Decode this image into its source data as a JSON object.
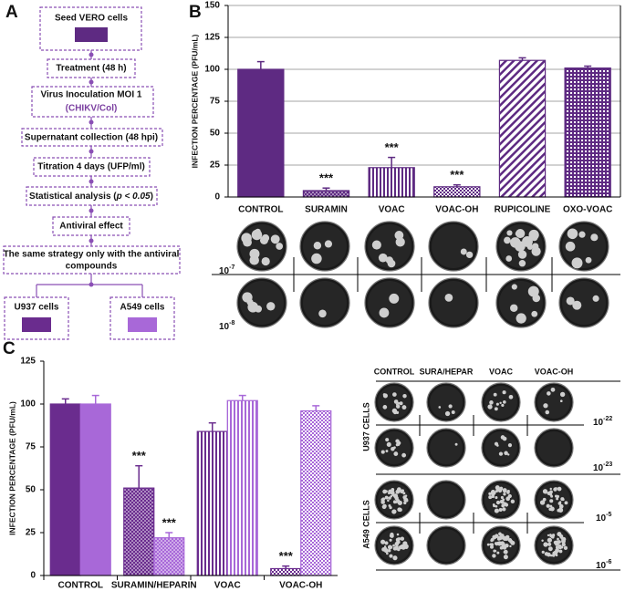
{
  "panels": {
    "a": "A",
    "b": "B",
    "c": "C"
  },
  "flowchart": {
    "seed": "Seed VERO cells",
    "treatment": "Treatment (48 h)",
    "inoculation": "Virus Inoculation MOI 1",
    "virus": "(CHIKV/Col)",
    "supernatant": "Supernatant collection (48 hpi)",
    "titration": "Titration 4 days (UFP/ml)",
    "stats": {
      "before": "Statistical analysis (",
      "italic": "p < 0.05",
      "after": ")"
    },
    "effect": "Antiviral effect",
    "strategy": [
      "The same strategy only with the antiviral",
      "compounds"
    ],
    "u937": "U937 cells",
    "a549": "A549 cells"
  },
  "chart_data": [
    {
      "type": "bar",
      "ylabel": "INFECTION PERCENTAGE (PFU/mL)",
      "categories": [
        "CONTROL",
        "SURAMIN",
        "VOAC",
        "VOAC-OH",
        "RUPICOLINE",
        "OXO-VOAC"
      ],
      "values": [
        100,
        5,
        23,
        8,
        107,
        101
      ],
      "errors": [
        6,
        2,
        8,
        1.5,
        2,
        1.5
      ],
      "value_annotations": [
        null,
        "***",
        "***",
        "***",
        null,
        null
      ],
      "color": "#5e2a82",
      "patterns": [
        "solid",
        "dots",
        "vstripes",
        "checker",
        "diagonal",
        "crosshatch"
      ],
      "ylim": [
        0,
        150
      ],
      "yticks": [
        0,
        25,
        50,
        75,
        100,
        125,
        150
      ],
      "grid": true
    },
    {
      "type": "bar",
      "ylabel": "INFECTION PERCENTAGE (PFU/mL)",
      "categories": [
        "CONTROL",
        "SURAMIN/HEPARIN",
        "VOAC",
        "VOAC-OH"
      ],
      "series": [
        {
          "color": "#6a2c8e",
          "values": [
            100,
            51,
            84,
            4
          ],
          "errors": [
            3,
            13,
            5,
            1.5
          ],
          "value_annotations": [
            null,
            "***",
            null,
            "***"
          ]
        },
        {
          "color": "#a868d8",
          "values": [
            100,
            22,
            102,
            96
          ],
          "errors": [
            5,
            3,
            3,
            3
          ],
          "value_annotations": [
            null,
            "***",
            null,
            null
          ]
        }
      ],
      "patterns": [
        "solid",
        "dots",
        "vstripes",
        "checker"
      ],
      "ylim": [
        0,
        125
      ],
      "yticks": [
        0,
        25,
        50,
        75,
        100,
        125
      ],
      "grid": false
    }
  ],
  "plates_b": {
    "dilutions": [
      {
        "base": "10",
        "exp": "-7"
      },
      {
        "base": "10",
        "exp": "-8"
      }
    ]
  },
  "plates_c": {
    "columns": [
      "CONTROL",
      "SURA/HEPAR",
      "VOAC",
      "VOAC-OH"
    ],
    "groups": [
      "U937 CELLS",
      "A549 CELLS"
    ],
    "dilutions": [
      {
        "base": "10",
        "exp": "-22"
      },
      {
        "base": "10",
        "exp": "-23"
      },
      {
        "base": "10",
        "exp": "-5"
      },
      {
        "base": "10",
        "exp": "-6"
      }
    ]
  }
}
